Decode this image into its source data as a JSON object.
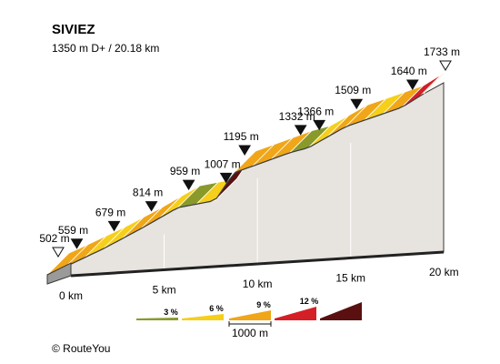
{
  "title": "SIVIEZ",
  "subtitle": "1350 m D+ / 20.18 km",
  "credit": "© RouteYou",
  "colors": {
    "grade_3": "#8a9a2a",
    "grade_6": "#f5cf1a",
    "grade_9": "#f0a618",
    "grade_12": "#d41f26",
    "grade_over_12": "#5a1010",
    "side_face": "#e7e3df",
    "outline": "#3a3a3a"
  },
  "legend": {
    "items": [
      {
        "label": "3 %",
        "color": "#8a9a2a"
      },
      {
        "label": "6 %",
        "color": "#f5cf1a"
      },
      {
        "label": "9 %",
        "color": "#f0a618"
      },
      {
        "label": "12 %",
        "color": "#d41f26"
      },
      {
        "label": "",
        "color": "#5a1010"
      }
    ],
    "scale_label": "1000 m"
  },
  "chart_data": {
    "type": "area",
    "title": "SIVIEZ",
    "subtitle": "1350 m D+ / 20.18 km",
    "x_unit": "km",
    "y_unit": "m",
    "x_ticks": [
      "0 km",
      "5 km",
      "10 km",
      "15 km",
      "20 km"
    ],
    "x_tick_values": [
      0,
      5,
      10,
      15,
      20
    ],
    "xlim": [
      0,
      20.18
    ],
    "ylim": [
      502,
      1733
    ],
    "points": [
      {
        "km": 0,
        "alt": 502,
        "label": "502 m",
        "marker": "start"
      },
      {
        "km": 1,
        "alt": 559,
        "label": "559 m",
        "marker": "km"
      },
      {
        "km": 3,
        "alt": 679,
        "label": "679 m",
        "marker": "km"
      },
      {
        "km": 5,
        "alt": 814,
        "label": "814 m",
        "marker": "km"
      },
      {
        "km": 7,
        "alt": 959,
        "label": "959 m",
        "marker": "km"
      },
      {
        "km": 9,
        "alt": 1007,
        "label": "1007 m",
        "marker": "km"
      },
      {
        "km": 10,
        "alt": 1195,
        "label": "1195 m",
        "marker": "km"
      },
      {
        "km": 13,
        "alt": 1332,
        "label": "1332 m",
        "marker": "km"
      },
      {
        "km": 14,
        "alt": 1366,
        "label": "1366 m",
        "marker": "km"
      },
      {
        "km": 16,
        "alt": 1509,
        "label": "1509 m",
        "marker": "km"
      },
      {
        "km": 19,
        "alt": 1640,
        "label": "1640 m",
        "marker": "km"
      },
      {
        "km": 20.18,
        "alt": 1733,
        "label": "1733 m",
        "marker": "summit"
      }
    ],
    "segments": [
      {
        "from": 0,
        "to": 1,
        "grade": 9
      },
      {
        "from": 1,
        "to": 2,
        "grade": 9
      },
      {
        "from": 2,
        "to": 3,
        "grade": 6
      },
      {
        "from": 3,
        "to": 4,
        "grade": 6
      },
      {
        "from": 4,
        "to": 5,
        "grade": 9
      },
      {
        "from": 5,
        "to": 6,
        "grade": 9
      },
      {
        "from": 6,
        "to": 7,
        "grade": 6
      },
      {
        "from": 7,
        "to": 8,
        "grade": 3
      },
      {
        "from": 8,
        "to": 9,
        "grade": 6
      },
      {
        "from": 9,
        "to": 10,
        "grade": 13
      },
      {
        "from": 10,
        "to": 11,
        "grade": 9
      },
      {
        "from": 11,
        "to": 12,
        "grade": 9
      },
      {
        "from": 12,
        "to": 13,
        "grade": 9
      },
      {
        "from": 13,
        "to": 14,
        "grade": 3
      },
      {
        "from": 14,
        "to": 15,
        "grade": 6
      },
      {
        "from": 15,
        "to": 16,
        "grade": 9
      },
      {
        "from": 16,
        "to": 17,
        "grade": 9
      },
      {
        "from": 17,
        "to": 18,
        "grade": 6
      },
      {
        "from": 18,
        "to": 19,
        "grade": 9
      },
      {
        "from": 19,
        "to": 20,
        "grade": 12
      },
      {
        "from": 20,
        "to": 20.18,
        "grade": 9
      }
    ]
  }
}
